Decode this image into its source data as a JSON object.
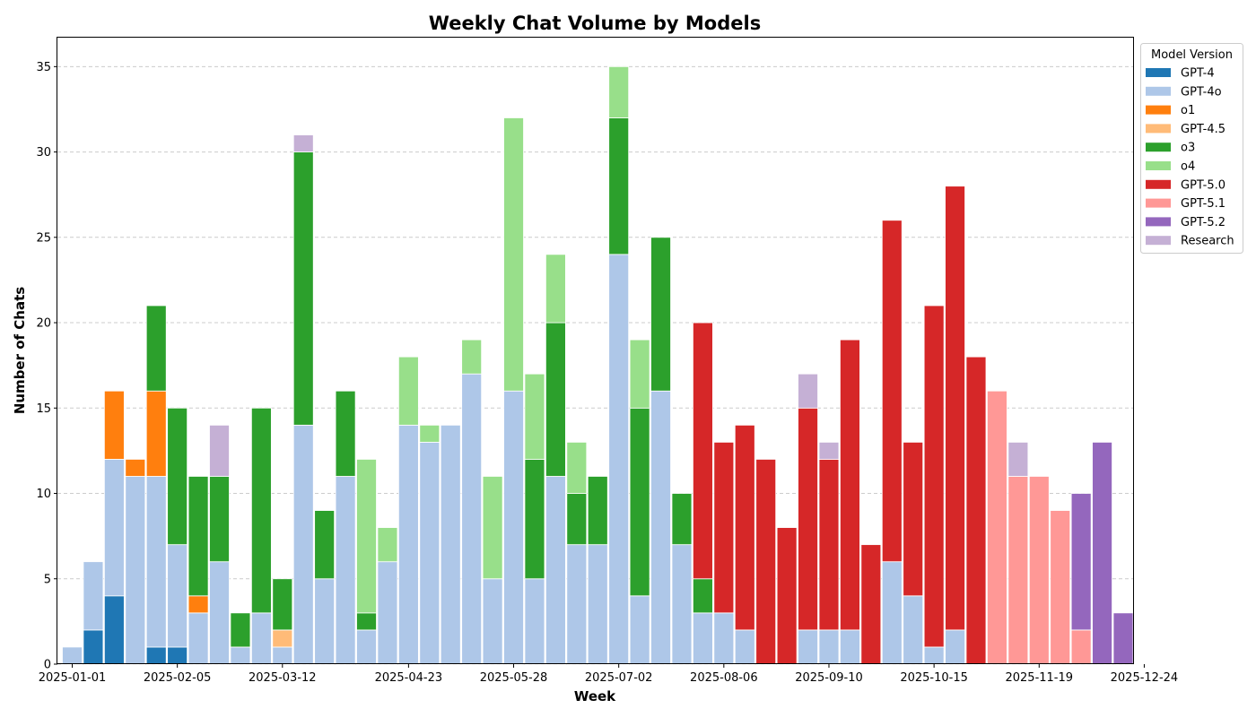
{
  "chart_data": {
    "type": "bar",
    "stacked": true,
    "title": "Weekly Chat Volume by Models",
    "xlabel": "Week",
    "ylabel": "Number of Chats",
    "ylim": [
      0,
      36.75
    ],
    "yticks": [
      0,
      5,
      10,
      15,
      20,
      25,
      30,
      35
    ],
    "grid": true,
    "legend_title": "Model Version",
    "legend_position": "outside-top-right",
    "xtick_labels": [
      "2025-01-01",
      "2025-02-05",
      "2025-03-12",
      "2025-04-23",
      "2025-05-28",
      "2025-07-02",
      "2025-08-06",
      "2025-09-10",
      "2025-10-15",
      "2025-11-19",
      "2025-12-24"
    ],
    "categories": [
      "2025-01-01",
      "2025-01-08",
      "2025-01-15",
      "2025-01-22",
      "2025-01-29",
      "2025-02-05",
      "2025-02-12",
      "2025-02-19",
      "2025-02-26",
      "2025-03-05",
      "2025-03-12",
      "2025-03-19",
      "2025-03-26",
      "2025-04-02",
      "2025-04-09",
      "2025-04-16",
      "2025-04-23",
      "2025-04-30",
      "2025-05-07",
      "2025-05-14",
      "2025-05-21",
      "2025-05-28",
      "2025-06-04",
      "2025-06-11",
      "2025-06-18",
      "2025-06-25",
      "2025-07-02",
      "2025-07-09",
      "2025-07-16",
      "2025-07-23",
      "2025-07-30",
      "2025-08-06",
      "2025-08-13",
      "2025-08-20",
      "2025-08-27",
      "2025-09-03",
      "2025-09-10",
      "2025-09-17",
      "2025-09-24",
      "2025-10-01",
      "2025-10-08",
      "2025-10-15",
      "2025-10-22",
      "2025-10-29",
      "2025-11-05",
      "2025-11-12",
      "2025-11-19",
      "2025-11-26",
      "2025-12-03",
      "2025-12-10",
      "2025-12-17",
      "2025-12-24"
    ],
    "series": [
      {
        "name": "GPT-4",
        "color": "#1f77b4",
        "values": [
          0,
          2,
          4,
          0,
          1,
          1,
          0,
          0,
          0,
          0,
          0,
          0,
          0,
          0,
          0,
          0,
          0,
          0,
          0,
          0,
          0,
          0,
          0,
          0,
          0,
          0,
          0,
          0,
          0,
          0,
          0,
          0,
          0,
          0,
          0,
          0,
          0,
          0,
          0,
          0,
          0,
          0,
          0,
          0,
          0,
          0,
          0,
          0,
          0,
          0,
          0,
          0
        ]
      },
      {
        "name": "GPT-4o",
        "color": "#aec7e8",
        "values": [
          1,
          4,
          8,
          11,
          10,
          6,
          3,
          6,
          1,
          3,
          1,
          14,
          5,
          11,
          2,
          6,
          14,
          13,
          14,
          17,
          5,
          16,
          5,
          11,
          7,
          7,
          24,
          4,
          16,
          7,
          3,
          3,
          2,
          0,
          0,
          2,
          2,
          2,
          0,
          6,
          4,
          1,
          2,
          0,
          0,
          0,
          0,
          0,
          0,
          0,
          0,
          0
        ]
      },
      {
        "name": "o1",
        "color": "#ff7f0e",
        "values": [
          0,
          0,
          4,
          1,
          5,
          0,
          1,
          0,
          0,
          0,
          0,
          0,
          0,
          0,
          0,
          0,
          0,
          0,
          0,
          0,
          0,
          0,
          0,
          0,
          0,
          0,
          0,
          0,
          0,
          0,
          0,
          0,
          0,
          0,
          0,
          0,
          0,
          0,
          0,
          0,
          0,
          0,
          0,
          0,
          0,
          0,
          0,
          0,
          0,
          0,
          0,
          0
        ]
      },
      {
        "name": "GPT-4.5",
        "color": "#ffbb78",
        "values": [
          0,
          0,
          0,
          0,
          0,
          0,
          0,
          0,
          0,
          0,
          1,
          0,
          0,
          0,
          0,
          0,
          0,
          0,
          0,
          0,
          0,
          0,
          0,
          0,
          0,
          0,
          0,
          0,
          0,
          0,
          0,
          0,
          0,
          0,
          0,
          0,
          0,
          0,
          0,
          0,
          0,
          0,
          0,
          0,
          0,
          0,
          0,
          0,
          0,
          0,
          0,
          0
        ]
      },
      {
        "name": "o3",
        "color": "#2ca02c",
        "values": [
          0,
          0,
          0,
          0,
          5,
          8,
          7,
          5,
          2,
          12,
          3,
          16,
          4,
          5,
          1,
          0,
          0,
          0,
          0,
          0,
          0,
          0,
          7,
          9,
          3,
          4,
          8,
          11,
          9,
          3,
          2,
          0,
          0,
          0,
          0,
          0,
          0,
          0,
          0,
          0,
          0,
          0,
          0,
          0,
          0,
          0,
          0,
          0,
          0,
          0,
          0,
          0
        ]
      },
      {
        "name": "o4",
        "color": "#98df8a",
        "values": [
          0,
          0,
          0,
          0,
          0,
          0,
          0,
          0,
          0,
          0,
          0,
          0,
          0,
          0,
          9,
          2,
          4,
          1,
          0,
          2,
          6,
          16,
          5,
          4,
          3,
          0,
          3,
          4,
          0,
          0,
          0,
          0,
          0,
          0,
          0,
          0,
          0,
          0,
          0,
          0,
          0,
          0,
          0,
          0,
          0,
          0,
          0,
          0,
          0,
          0,
          0,
          0
        ]
      },
      {
        "name": "GPT-5.0",
        "color": "#d62728",
        "values": [
          0,
          0,
          0,
          0,
          0,
          0,
          0,
          0,
          0,
          0,
          0,
          0,
          0,
          0,
          0,
          0,
          0,
          0,
          0,
          0,
          0,
          0,
          0,
          0,
          0,
          0,
          0,
          0,
          0,
          0,
          15,
          10,
          12,
          12,
          8,
          13,
          10,
          17,
          7,
          20,
          9,
          20,
          26,
          18,
          0,
          0,
          0,
          0,
          0,
          0,
          0,
          0
        ]
      },
      {
        "name": "GPT-5.1",
        "color": "#ff9896",
        "values": [
          0,
          0,
          0,
          0,
          0,
          0,
          0,
          0,
          0,
          0,
          0,
          0,
          0,
          0,
          0,
          0,
          0,
          0,
          0,
          0,
          0,
          0,
          0,
          0,
          0,
          0,
          0,
          0,
          0,
          0,
          0,
          0,
          0,
          0,
          0,
          0,
          0,
          0,
          0,
          0,
          0,
          0,
          0,
          0,
          16,
          11,
          11,
          9,
          2,
          0,
          0,
          0
        ]
      },
      {
        "name": "GPT-5.2",
        "color": "#9467bd",
        "values": [
          0,
          0,
          0,
          0,
          0,
          0,
          0,
          0,
          0,
          0,
          0,
          0,
          0,
          0,
          0,
          0,
          0,
          0,
          0,
          0,
          0,
          0,
          0,
          0,
          0,
          0,
          0,
          0,
          0,
          0,
          0,
          0,
          0,
          0,
          0,
          0,
          0,
          0,
          0,
          0,
          0,
          0,
          0,
          0,
          0,
          0,
          0,
          0,
          8,
          13,
          3,
          0
        ]
      },
      {
        "name": "Research",
        "color": "#c5b0d5",
        "values": [
          0,
          0,
          0,
          0,
          0,
          0,
          0,
          3,
          0,
          0,
          0,
          1,
          0,
          0,
          0,
          0,
          0,
          0,
          0,
          0,
          0,
          0,
          0,
          0,
          0,
          0,
          0,
          0,
          0,
          0,
          0,
          0,
          0,
          0,
          0,
          2,
          1,
          0,
          0,
          0,
          0,
          0,
          0,
          0,
          0,
          2,
          0,
          0,
          0,
          0,
          0,
          0
        ]
      }
    ]
  }
}
